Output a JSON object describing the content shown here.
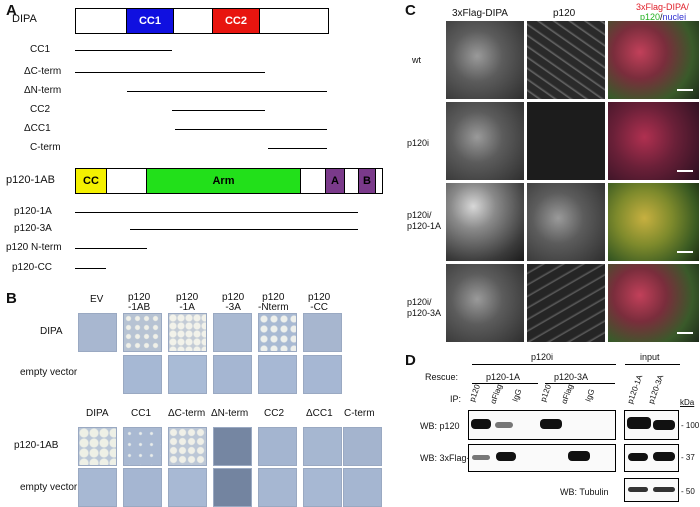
{
  "panels": {
    "a": "A",
    "b": "B",
    "c": "C",
    "d": "D"
  },
  "panel_a": {
    "dipa_label": "DIPA",
    "cc1": "CC1",
    "cc2": "CC2",
    "constructs_dipa": [
      "CC1",
      "ΔC-term",
      "ΔN-term",
      "CC2",
      "ΔCC1",
      "C-term"
    ],
    "p120_label": "p120-1AB",
    "cc": "CC",
    "arm": "Arm",
    "a": "A",
    "b": "B",
    "constructs_p120": [
      "p120-1A",
      "p120-3A",
      "p120 N-term",
      "p120-CC"
    ],
    "colors": {
      "cc1": "#1010e0",
      "cc2": "#e8150f",
      "cc": "#f4f000",
      "arm": "#22e01a",
      "ab": "#7a3a8a"
    }
  },
  "panel_b": {
    "top_cols": [
      "EV",
      "p120\n-1AB",
      "p120\n-1A",
      "p120\n-3A",
      "p120\n-Nterm",
      "p120\n-CC"
    ],
    "top_rows": [
      "DIPA",
      "empty vector"
    ],
    "bottom_cols": [
      "DIPA",
      "CC1",
      "ΔC-term",
      "ΔN-term",
      "CC2",
      "ΔCC1",
      "C-term"
    ],
    "bottom_rows": [
      "p120-1AB",
      "empty vector"
    ]
  },
  "panel_c": {
    "col_headers": [
      "3xFlag-DIPA",
      "p120"
    ],
    "merge_header": {
      "line1": "3xFlag-DIPA/",
      "p120": "p120",
      "slash": "/",
      "nuclei": "nuclei"
    },
    "rows": [
      "wt",
      "p120i",
      "p120i/\np120-1A",
      "p120i/\np120-3A"
    ]
  },
  "panel_d": {
    "group_p120i": "p120i",
    "group_input": "input",
    "rescue_label": "Rescue:",
    "rescue_1a": "p120-1A",
    "rescue_3a": "p120-3A",
    "ip_label": "IP:",
    "ip_lanes": [
      "p120",
      "αFlag",
      "IgG",
      "p120",
      "αFlag",
      "IgG"
    ],
    "input_lanes": [
      "p120-1A",
      "p120-3A"
    ],
    "kda": "kDa",
    "wb_p120": "WB: p120",
    "wb_flag": "WB: 3xFlag-DIPA",
    "wb_tub": "WB: Tubulin",
    "mw": [
      "- 100",
      "- 37",
      "- 50"
    ]
  }
}
